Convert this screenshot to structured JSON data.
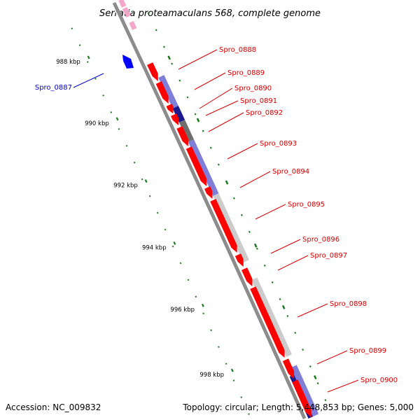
{
  "title": "Serratia proteamaculans 568, complete genome",
  "footer": {
    "accession": "Accession: NC_009832",
    "summary": "Topology: circular; Length: 5,448,853 bp; Genes: 5,000"
  },
  "colors": {
    "forward_gene": "#ff0000",
    "reverse_gene": "#0000ff",
    "backbone": "#8c8c8c",
    "tick": "#1a7a1a",
    "label_forward": "#d40000",
    "label_reverse": "#0000cc",
    "feature_blue": "#7f7fd8",
    "feature_navy": "#1a1a8c",
    "feature_gray": "#cccccc",
    "feature_darkgray": "#6e6e6e",
    "feature_pink": "#f4a6c8"
  },
  "kbp_labels": [
    "988 kbp",
    "990 kbp",
    "992 kbp",
    "994 kbp",
    "996 kbp",
    "998 kbp"
  ],
  "genes": [
    {
      "label": "Spro_0887",
      "strand": "reverse"
    },
    {
      "label": "Spro_0888",
      "strand": "forward"
    },
    {
      "label": "Spro_0889",
      "strand": "forward"
    },
    {
      "label": "Spro_0890",
      "strand": "forward"
    },
    {
      "label": "Spro_0891",
      "strand": "forward"
    },
    {
      "label": "Spro_0892",
      "strand": "forward"
    },
    {
      "label": "Spro_0893",
      "strand": "forward"
    },
    {
      "label": "Spro_0894",
      "strand": "forward"
    },
    {
      "label": "Spro_0895",
      "strand": "forward"
    },
    {
      "label": "Spro_0896",
      "strand": "forward"
    },
    {
      "label": "Spro_0897",
      "strand": "forward"
    },
    {
      "label": "Spro_0898",
      "strand": "forward"
    },
    {
      "label": "Spro_0899",
      "strand": "forward"
    },
    {
      "label": "Spro_0900",
      "strand": "forward"
    }
  ]
}
